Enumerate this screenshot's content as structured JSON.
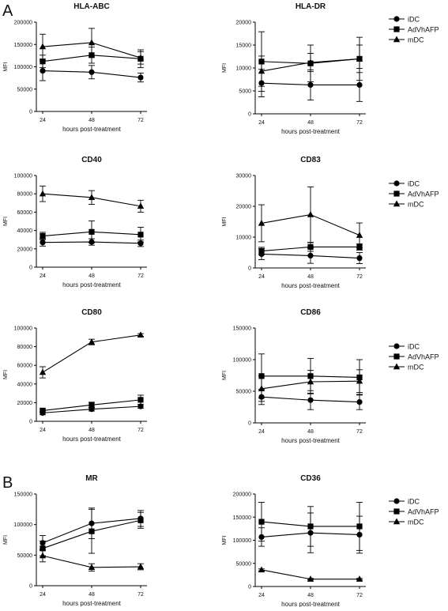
{
  "figure": {
    "section_labels": [
      "A",
      "B"
    ]
  },
  "chart_data": [
    {
      "type": "line",
      "title": "HLA-ABC",
      "xlabel": "hours post-treatment",
      "ylabel": "MFI",
      "x": [
        24,
        48,
        72
      ],
      "ylim": [
        0,
        200000
      ],
      "yticks": [
        0,
        50000,
        100000,
        150000,
        200000
      ],
      "legend": false,
      "series": [
        {
          "name": "iDC",
          "marker": "circle",
          "values": [
            91000,
            88000,
            76000
          ],
          "errors": [
            22000,
            15000,
            10000
          ]
        },
        {
          "name": "AdVhAFP",
          "marker": "square",
          "values": [
            112000,
            126000,
            118000
          ],
          "errors": [
            14000,
            18000,
            20000
          ]
        },
        {
          "name": "mDC",
          "marker": "triangle",
          "values": [
            145000,
            154000,
            120000
          ],
          "errors": [
            28000,
            32000,
            14000
          ]
        }
      ]
    },
    {
      "type": "line",
      "title": "HLA-DR",
      "xlabel": "hours post-treatment",
      "ylabel": "MFI",
      "x": [
        24,
        48,
        72
      ],
      "ylim": [
        0,
        20000
      ],
      "yticks": [
        0,
        5000,
        10000,
        15000,
        20000
      ],
      "legend": true,
      "legend_position": "right",
      "series": [
        {
          "name": "iDC",
          "marker": "circle",
          "values": [
            6700,
            6300,
            6300
          ],
          "errors": [
            3000,
            3300,
            3600
          ]
        },
        {
          "name": "AdVhAFP",
          "marker": "square",
          "values": [
            11400,
            11000,
            12000
          ],
          "errors": [
            6500,
            4000,
            4700
          ]
        },
        {
          "name": "mDC",
          "marker": "triangle",
          "values": [
            9300,
            11200,
            12000
          ],
          "errors": [
            3300,
            2000,
            3000
          ]
        }
      ]
    },
    {
      "type": "line",
      "title": "CD40",
      "xlabel": "hours post-treatment",
      "ylabel": "MFI",
      "x": [
        24,
        48,
        72
      ],
      "ylim": [
        0,
        100000
      ],
      "yticks": [
        0,
        20000,
        40000,
        60000,
        80000,
        100000
      ],
      "legend": false,
      "series": [
        {
          "name": "iDC",
          "marker": "circle",
          "values": [
            27000,
            27500,
            26000
          ],
          "errors": [
            4000,
            3500,
            3500
          ]
        },
        {
          "name": "AdVhAFP",
          "marker": "square",
          "values": [
            34000,
            38500,
            35500
          ],
          "errors": [
            4000,
            12000,
            8000
          ]
        },
        {
          "name": "mDC",
          "marker": "triangle",
          "values": [
            80000,
            76000,
            66500
          ],
          "errors": [
            8500,
            7500,
            6500
          ]
        }
      ]
    },
    {
      "type": "line",
      "title": "CD83",
      "xlabel": "hours post-treatment",
      "ylabel": "MFI",
      "x": [
        24,
        48,
        72
      ],
      "ylim": [
        0,
        30000
      ],
      "yticks": [
        0,
        10000,
        20000,
        30000
      ],
      "legend": true,
      "legend_position": "right",
      "series": [
        {
          "name": "iDC",
          "marker": "circle",
          "values": [
            4500,
            4000,
            3200
          ],
          "errors": [
            1800,
            2500,
            1800
          ]
        },
        {
          "name": "AdVhAFP",
          "marker": "square",
          "values": [
            5500,
            6800,
            6800
          ],
          "errors": [
            1200,
            1400,
            1000
          ]
        },
        {
          "name": "mDC",
          "marker": "triangle",
          "values": [
            14500,
            17300,
            10600
          ],
          "errors": [
            6000,
            9000,
            4000
          ]
        }
      ]
    },
    {
      "type": "line",
      "title": "CD80",
      "xlabel": "hours post-treatment",
      "ylabel": "MFI",
      "x": [
        24,
        48,
        72
      ],
      "ylim": [
        0,
        100000
      ],
      "yticks": [
        0,
        20000,
        40000,
        60000,
        80000,
        100000
      ],
      "legend": false,
      "series": [
        {
          "name": "iDC",
          "marker": "circle",
          "values": [
            9000,
            13000,
            16000
          ],
          "errors": [
            2000,
            2000,
            2000
          ]
        },
        {
          "name": "AdVhAFP",
          "marker": "square",
          "values": [
            11500,
            17500,
            23000
          ],
          "errors": [
            2000,
            3000,
            5000
          ]
        },
        {
          "name": "mDC",
          "marker": "triangle",
          "values": [
            52500,
            85000,
            92500
          ],
          "errors": [
            6000,
            3000,
            1500
          ]
        }
      ]
    },
    {
      "type": "line",
      "title": "CD86",
      "xlabel": "hours post-treatment",
      "ylabel": "MFI",
      "x": [
        24,
        48,
        72
      ],
      "ylim": [
        0,
        150000
      ],
      "yticks": [
        0,
        50000,
        100000,
        150000
      ],
      "legend": true,
      "legend_position": "right",
      "series": [
        {
          "name": "iDC",
          "marker": "circle",
          "values": [
            41000,
            36000,
            33000
          ],
          "errors": [
            12000,
            15000,
            12000
          ]
        },
        {
          "name": "AdVhAFP",
          "marker": "square",
          "values": [
            74000,
            74000,
            72000
          ],
          "errors": [
            35000,
            28000,
            28000
          ]
        },
        {
          "name": "mDC",
          "marker": "triangle",
          "values": [
            54000,
            65000,
            66000
          ],
          "errors": [
            20000,
            18000,
            18000
          ]
        }
      ]
    },
    {
      "type": "line",
      "title": "MR",
      "xlabel": "hours post-treatment",
      "ylabel": "MFI",
      "x": [
        24,
        48,
        72
      ],
      "ylim": [
        0,
        150000
      ],
      "yticks": [
        0,
        50000,
        100000,
        150000
      ],
      "legend": false,
      "series": [
        {
          "name": "iDC",
          "marker": "circle",
          "values": [
            70000,
            102000,
            110000
          ],
          "errors": [
            12000,
            25000,
            13000
          ]
        },
        {
          "name": "AdVhAFP",
          "marker": "square",
          "values": [
            61000,
            89000,
            107000
          ],
          "errors": [
            12000,
            36000,
            13000
          ]
        },
        {
          "name": "mDC",
          "marker": "triangle",
          "values": [
            49000,
            30000,
            31000
          ],
          "errors": [
            10000,
            6000,
            5000
          ]
        }
      ]
    },
    {
      "type": "line",
      "title": "CD36",
      "xlabel": "hours post-treatment",
      "ylabel": "MFI",
      "x": [
        24,
        48,
        72
      ],
      "ylim": [
        0,
        200000
      ],
      "yticks": [
        0,
        50000,
        100000,
        150000,
        200000
      ],
      "legend": true,
      "legend_position": "right",
      "series": [
        {
          "name": "iDC",
          "marker": "circle",
          "values": [
            107000,
            116000,
            112000
          ],
          "errors": [
            20000,
            43000,
            40000
          ]
        },
        {
          "name": "AdVhAFP",
          "marker": "square",
          "values": [
            140000,
            130000,
            130000
          ],
          "errors": [
            42000,
            43000,
            52000
          ]
        },
        {
          "name": "mDC",
          "marker": "triangle",
          "values": [
            36000,
            16000,
            16000
          ],
          "errors": [
            2000,
            1500,
            1500
          ]
        }
      ]
    }
  ]
}
